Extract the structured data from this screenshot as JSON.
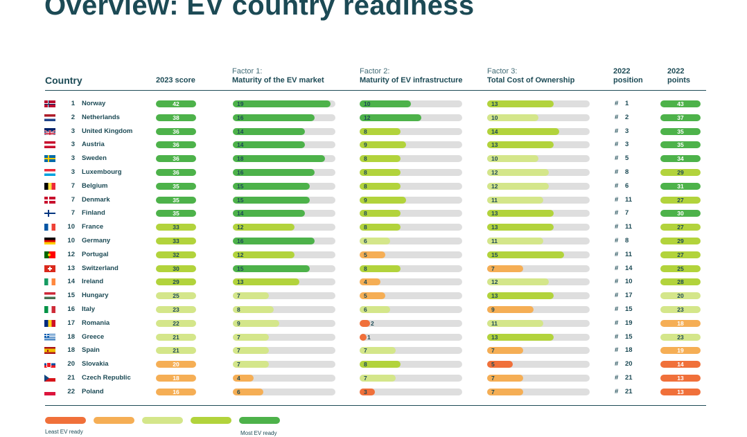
{
  "page": {
    "title": "Overview: EV country readiness"
  },
  "headers": {
    "country": "Country",
    "score": "2023 score",
    "factor1_sub": "Factor 1:",
    "factor1_main": "Maturity of the EV market",
    "factor2_sub": "Factor 2:",
    "factor2_main": "Maturity of EV infrastructure",
    "factor3_sub": "Factor 3:",
    "factor3_main": "Total Cost of Ownership",
    "pos_sub": "2022",
    "pos_main": "position",
    "pts_sub": "2022",
    "pts_main": "points"
  },
  "colors": {
    "level1": "#f0703a",
    "level2": "#f5ae55",
    "level3": "#d4e68a",
    "level4": "#b2d33c",
    "level5": "#4db24a",
    "track": "#dedede"
  },
  "legend": {
    "least": "Least EV ready",
    "most": "Most EV ready"
  },
  "chart_data": {
    "type": "table",
    "title": "Overview: EV country readiness",
    "columns": [
      "Country",
      "2023 score",
      "Factor 1: Maturity of the EV market",
      "Factor 2: Maturity of EV infrastructure",
      "Factor 3: Total Cost of Ownership",
      "2022 position",
      "2022 points"
    ],
    "factor_max": 20,
    "rows": [
      {
        "rank": "1",
        "country": "Norway",
        "score": 42,
        "f1": 19,
        "f2": 10,
        "f3": 13,
        "pos2022": "1",
        "pts2022": 43,
        "flag": "no",
        "score_level": 5,
        "f1_level": 5,
        "f2_level": 5,
        "f3_level": 4,
        "pts_level": 5
      },
      {
        "rank": "2",
        "country": "Netherlands",
        "score": 38,
        "f1": 16,
        "f2": 12,
        "f3": 10,
        "pos2022": "2",
        "pts2022": 37,
        "flag": "nl",
        "score_level": 5,
        "f1_level": 5,
        "f2_level": 5,
        "f3_level": 3,
        "pts_level": 5
      },
      {
        "rank": "3",
        "country": "United Kingdom",
        "score": 36,
        "f1": 14,
        "f2": 8,
        "f3": 14,
        "pos2022": "3",
        "pts2022": 35,
        "flag": "uk",
        "score_level": 5,
        "f1_level": 5,
        "f2_level": 4,
        "f3_level": 4,
        "pts_level": 5
      },
      {
        "rank": "3",
        "country": "Austria",
        "score": 36,
        "f1": 14,
        "f2": 9,
        "f3": 13,
        "pos2022": "3",
        "pts2022": 35,
        "flag": "at",
        "score_level": 5,
        "f1_level": 5,
        "f2_level": 4,
        "f3_level": 4,
        "pts_level": 5
      },
      {
        "rank": "3",
        "country": "Sweden",
        "score": 36,
        "f1": 18,
        "f2": 8,
        "f3": 10,
        "pos2022": "5",
        "pts2022": 34,
        "flag": "se",
        "score_level": 5,
        "f1_level": 5,
        "f2_level": 4,
        "f3_level": 3,
        "pts_level": 5
      },
      {
        "rank": "3",
        "country": "Luxembourg",
        "score": 36,
        "f1": 16,
        "f2": 8,
        "f3": 12,
        "pos2022": "8",
        "pts2022": 29,
        "flag": "lu",
        "score_level": 5,
        "f1_level": 5,
        "f2_level": 4,
        "f3_level": 3,
        "pts_level": 4
      },
      {
        "rank": "7",
        "country": "Belgium",
        "score": 35,
        "f1": 15,
        "f2": 8,
        "f3": 12,
        "pos2022": "6",
        "pts2022": 31,
        "flag": "be",
        "score_level": 5,
        "f1_level": 5,
        "f2_level": 4,
        "f3_level": 3,
        "pts_level": 5
      },
      {
        "rank": "7",
        "country": "Denmark",
        "score": 35,
        "f1": 15,
        "f2": 9,
        "f3": 11,
        "pos2022": "11",
        "pts2022": 27,
        "flag": "dk",
        "score_level": 5,
        "f1_level": 5,
        "f2_level": 4,
        "f3_level": 3,
        "pts_level": 4
      },
      {
        "rank": "7",
        "country": "Finland",
        "score": 35,
        "f1": 14,
        "f2": 8,
        "f3": 13,
        "pos2022": "7",
        "pts2022": 30,
        "flag": "fi",
        "score_level": 5,
        "f1_level": 5,
        "f2_level": 4,
        "f3_level": 4,
        "pts_level": 5
      },
      {
        "rank": "10",
        "country": "France",
        "score": 33,
        "f1": 12,
        "f2": 8,
        "f3": 13,
        "pos2022": "11",
        "pts2022": 27,
        "flag": "fr",
        "score_level": 4,
        "f1_level": 4,
        "f2_level": 4,
        "f3_level": 4,
        "pts_level": 4
      },
      {
        "rank": "10",
        "country": "Germany",
        "score": 33,
        "f1": 16,
        "f2": 6,
        "f3": 11,
        "pos2022": "8",
        "pts2022": 29,
        "flag": "de",
        "score_level": 4,
        "f1_level": 5,
        "f2_level": 3,
        "f3_level": 3,
        "pts_level": 4
      },
      {
        "rank": "12",
        "country": "Portugal",
        "score": 32,
        "f1": 12,
        "f2": 5,
        "f3": 15,
        "pos2022": "11",
        "pts2022": 27,
        "flag": "pt",
        "score_level": 4,
        "f1_level": 4,
        "f2_level": 2,
        "f3_level": 4,
        "pts_level": 4
      },
      {
        "rank": "13",
        "country": "Switzerland",
        "score": 30,
        "f1": 15,
        "f2": 8,
        "f3": 7,
        "pos2022": "14",
        "pts2022": 25,
        "flag": "ch",
        "score_level": 4,
        "f1_level": 5,
        "f2_level": 4,
        "f3_level": 2,
        "pts_level": 4
      },
      {
        "rank": "14",
        "country": "Ireland",
        "score": 29,
        "f1": 13,
        "f2": 4,
        "f3": 12,
        "pos2022": "10",
        "pts2022": 28,
        "flag": "ie",
        "score_level": 4,
        "f1_level": 4,
        "f2_level": 2,
        "f3_level": 3,
        "pts_level": 4
      },
      {
        "rank": "15",
        "country": "Hungary",
        "score": 25,
        "f1": 7,
        "f2": 5,
        "f3": 13,
        "pos2022": "17",
        "pts2022": 20,
        "flag": "hu",
        "score_level": 3,
        "f1_level": 3,
        "f2_level": 2,
        "f3_level": 4,
        "pts_level": 3
      },
      {
        "rank": "16",
        "country": "Italy",
        "score": 23,
        "f1": 8,
        "f2": 6,
        "f3": 9,
        "pos2022": "15",
        "pts2022": 23,
        "flag": "it",
        "score_level": 3,
        "f1_level": 3,
        "f2_level": 3,
        "f3_level": 2,
        "pts_level": 3
      },
      {
        "rank": "17",
        "country": "Romania",
        "score": 22,
        "f1": 9,
        "f2": 2,
        "f3": 11,
        "pos2022": "19",
        "pts2022": 18,
        "flag": "ro",
        "score_level": 3,
        "f1_level": 3,
        "f2_level": 1,
        "f3_level": 3,
        "pts_level": 2
      },
      {
        "rank": "18",
        "country": "Greece",
        "score": 21,
        "f1": 7,
        "f2": 1,
        "f3": 13,
        "pos2022": "15",
        "pts2022": 23,
        "flag": "gr",
        "score_level": 3,
        "f1_level": 3,
        "f2_level": 1,
        "f3_level": 4,
        "pts_level": 3
      },
      {
        "rank": "18",
        "country": "Spain",
        "score": 21,
        "f1": 7,
        "f2": 7,
        "f3": 7,
        "pos2022": "18",
        "pts2022": 19,
        "flag": "es",
        "score_level": 3,
        "f1_level": 3,
        "f2_level": 3,
        "f3_level": 2,
        "pts_level": 2
      },
      {
        "rank": "20",
        "country": "Slovakia",
        "score": 20,
        "f1": 7,
        "f2": 8,
        "f3": 5,
        "pos2022": "20",
        "pts2022": 14,
        "flag": "sk",
        "score_level": 2,
        "f1_level": 3,
        "f2_level": 4,
        "f3_level": 1,
        "pts_level": 1
      },
      {
        "rank": "21",
        "country": "Czech Republic",
        "score": 18,
        "f1": 4,
        "f2": 7,
        "f3": 7,
        "pos2022": "21",
        "pts2022": 13,
        "flag": "cz",
        "score_level": 2,
        "f1_level": 2,
        "f2_level": 3,
        "f3_level": 2,
        "pts_level": 1
      },
      {
        "rank": "22",
        "country": "Poland",
        "score": 16,
        "f1": 6,
        "f2": 3,
        "f3": 7,
        "pos2022": "21",
        "pts2022": 13,
        "flag": "pl",
        "score_level": 2,
        "f1_level": 2,
        "f2_level": 1,
        "f3_level": 2,
        "pts_level": 1
      }
    ]
  }
}
